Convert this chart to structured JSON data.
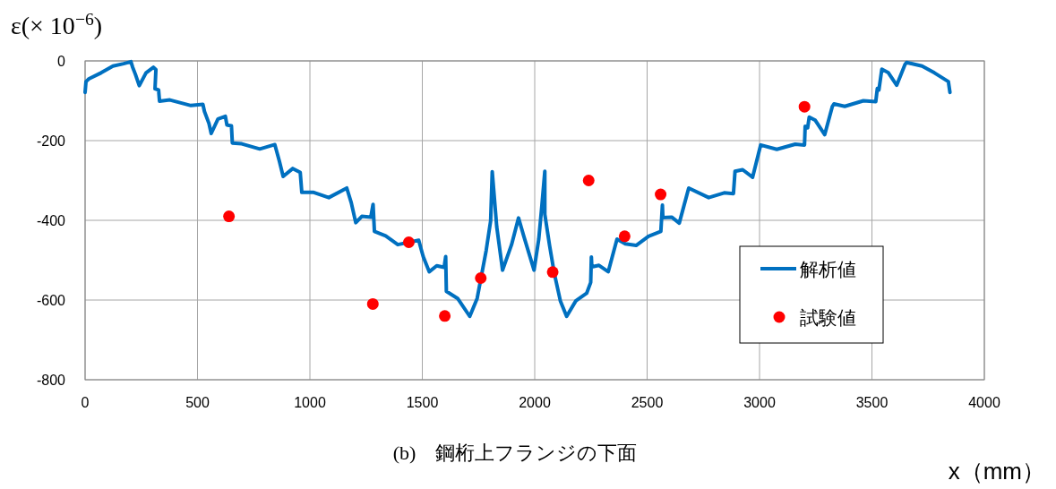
{
  "chart_data": {
    "type": "line",
    "title": "(b)　鋼桁上フランジの下面",
    "xlabel": "x（mm）",
    "ylabel": "ε(× 10$^{−6}$)",
    "xlim": [
      0,
      4000
    ],
    "xticks": [
      0,
      500,
      1000,
      1500,
      2000,
      2500,
      3000,
      3500,
      4000
    ],
    "ylim": [
      -800,
      0
    ],
    "yticks": [
      -800,
      -600,
      -400,
      -200,
      0
    ],
    "grid": true,
    "legend": "right",
    "series": [
      {
        "name": "解析値",
        "type": "line",
        "color": "#0070c0",
        "marker": "none",
        "x": [
          0,
          4,
          17,
          71,
          124,
          171,
          204,
          211,
          224,
          241,
          271,
          304,
          315,
          311,
          327,
          331,
          377,
          471,
          524,
          531,
          551,
          561,
          591,
          624,
          631,
          651,
          655,
          697,
          777,
          844,
          864,
          881,
          924,
          957,
          964,
          1017,
          1084,
          1164,
          1184,
          1204,
          1231,
          1271,
          1281,
          1287,
          1337,
          1391,
          1484,
          1504,
          1531,
          1564,
          1597,
          1604,
          1607,
          1657,
          1711,
          1744,
          1784,
          1804,
          1811,
          1831,
          1857,
          1897,
          1928,
          1951,
          1997,
          2018,
          2032,
          2045,
          2045,
          2066,
          2087,
          2114,
          2142,
          2183,
          2231,
          2249,
          2252,
          2254,
          2286,
          2327,
          2366,
          2403,
          2451,
          2506,
          2561,
          2568,
          2570,
          2609,
          2643,
          2685,
          2774,
          2843,
          2884,
          2891,
          2925,
          2969,
          3005,
          3077,
          3159,
          3200,
          3203,
          3214,
          3221,
          3248,
          3290,
          3324,
          3331,
          3379,
          3462,
          3517,
          3524,
          3531,
          3544,
          3572,
          3610,
          3647,
          3654,
          3723,
          3778,
          3840,
          3847
        ],
        "values": [
          -79,
          -52,
          -45,
          -30,
          -13,
          -7,
          -2,
          -15,
          -34,
          -62,
          -30,
          -16,
          -22,
          -70,
          -73,
          -101,
          -98,
          -112,
          -109,
          -127,
          -157,
          -182,
          -146,
          -139,
          -161,
          -163,
          -206,
          -208,
          -221,
          -210,
          -251,
          -290,
          -270,
          -280,
          -330,
          -330,
          -343,
          -319,
          -356,
          -406,
          -390,
          -392,
          -360,
          -428,
          -439,
          -461,
          -450,
          -491,
          -529,
          -514,
          -518,
          -491,
          -578,
          -596,
          -641,
          -596,
          -476,
          -401,
          -278,
          -416,
          -525,
          -461,
          -394,
          -439,
          -525,
          -447,
          -362,
          -277,
          -385,
          -463,
          -533,
          -602,
          -641,
          -602,
          -583,
          -556,
          -492,
          -517,
          -513,
          -529,
          -447,
          -459,
          -463,
          -440,
          -428,
          -362,
          -393,
          -392,
          -407,
          -319,
          -343,
          -331,
          -333,
          -277,
          -273,
          -292,
          -211,
          -222,
          -209,
          -211,
          -164,
          -168,
          -141,
          -149,
          -185,
          -114,
          -108,
          -114,
          -100,
          -102,
          -69,
          -73,
          -21,
          -29,
          -61,
          -9,
          -4,
          -13,
          -30,
          -52,
          -79
        ]
      },
      {
        "name": "試験値",
        "type": "scatter",
        "color": "#ff0000",
        "marker": "circle",
        "x": [
          640,
          1280,
          1440,
          1600,
          1760,
          2080,
          2240,
          2400,
          2560,
          3200
        ],
        "values": [
          -390,
          -610,
          -455,
          -640,
          -545,
          -530,
          -300,
          -440,
          -335,
          -115
        ]
      }
    ]
  }
}
